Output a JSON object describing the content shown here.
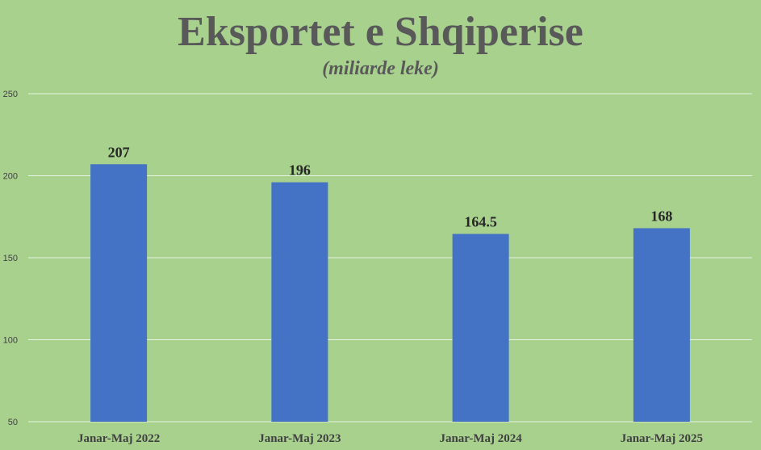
{
  "chart_data": {
    "type": "bar",
    "title": "Eksportet e Shqiperise",
    "subtitle": "(miliarde leke)",
    "categories": [
      "Janar-Maj 2022",
      "Janar-Maj 2023",
      "Janar-Maj 2024",
      "Janar-Maj 2025"
    ],
    "values": [
      207,
      196,
      164.5,
      168
    ],
    "data_labels": [
      "207",
      "196",
      "164.5",
      "168"
    ],
    "xlabel": "",
    "ylabel": "",
    "ylim": [
      50,
      250
    ],
    "yticks": [
      50,
      100,
      150,
      200,
      250
    ],
    "grid": true,
    "legend": "none",
    "colors": {
      "background": "#a9d18e",
      "bar": "#4472c4",
      "gridline": "#e8f2e0",
      "title": "#595959"
    }
  }
}
